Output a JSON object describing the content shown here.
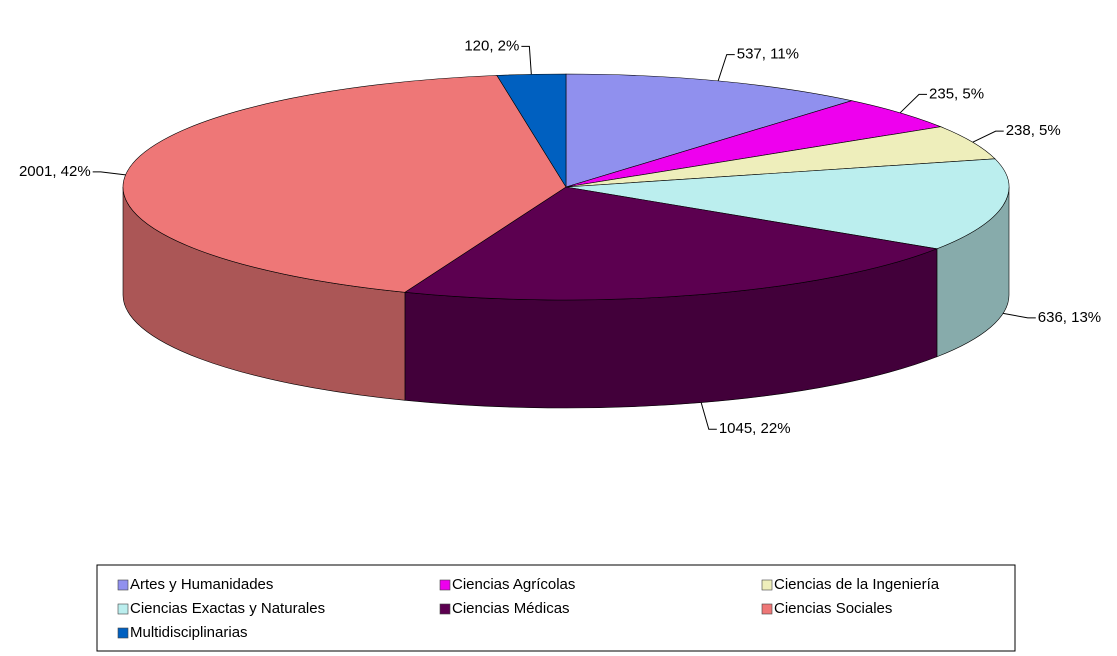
{
  "chart_data": {
    "type": "pie3d",
    "categories": [
      "Artes y Humanidades",
      "Ciencias Agrícolas",
      "Ciencias de la Ingeniería",
      "Ciencias Exactas y Naturales",
      "Ciencias Médicas",
      "Ciencias Sociales",
      "Multidisciplinarias"
    ],
    "values": [
      537,
      235,
      238,
      636,
      1045,
      2001,
      120
    ],
    "value_labels": [
      "537, 11%",
      "235, 5%",
      "238, 5%",
      "636, 13%",
      "1045, 22%",
      "2001, 42%",
      "120, 2%"
    ],
    "colors": [
      "#9090ee",
      "#ee00ee",
      "#eeeebb",
      "#bbeeee",
      "#5c0050",
      "#ee7777",
      "#0060c0"
    ],
    "legend": "bottom"
  }
}
